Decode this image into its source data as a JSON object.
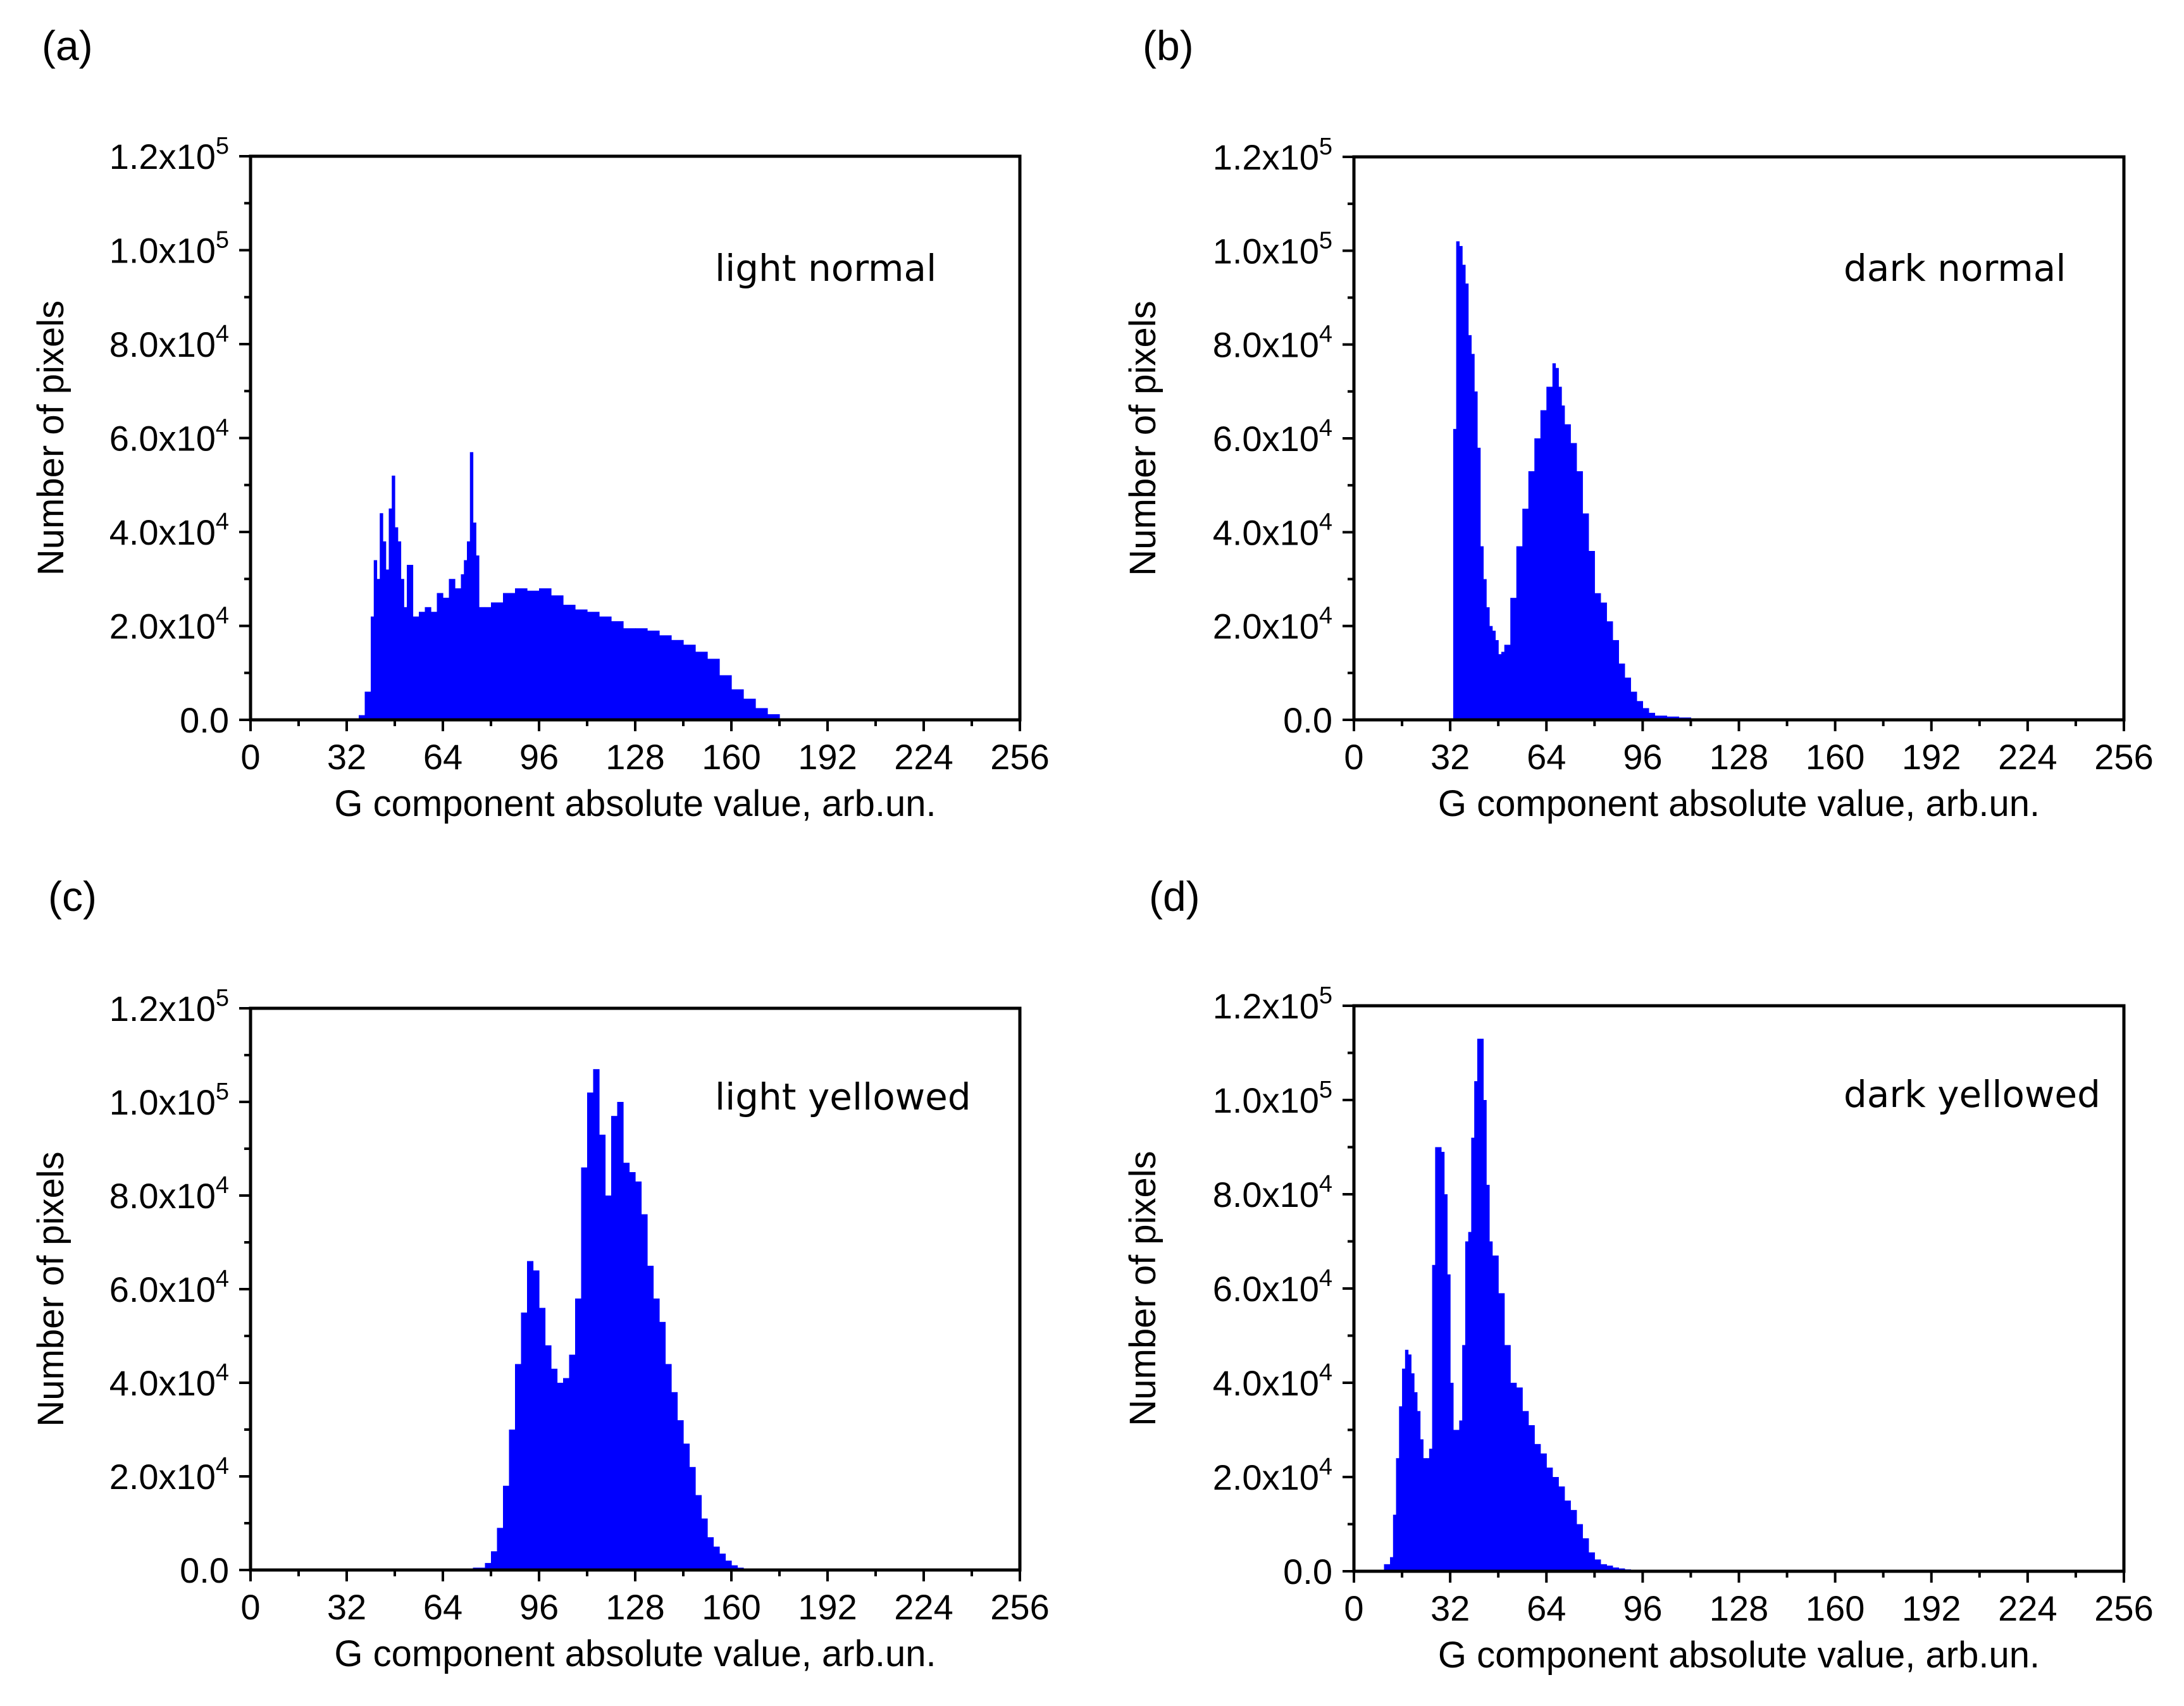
{
  "chart_data": [
    {
      "type": "bar",
      "panel": "(a)",
      "annotation": "light normal",
      "xlabel": "G component absolute value, arb.un.",
      "ylabel": "Number of pixels",
      "xlim": [
        0,
        256
      ],
      "ylim": [
        0,
        120000
      ],
      "xticks": [
        "0",
        "32",
        "64",
        "96",
        "128",
        "160",
        "192",
        "224",
        "256"
      ],
      "yticks": [
        {
          "m": "0.0",
          "e": ""
        },
        {
          "m": "2.0x10",
          "e": "4"
        },
        {
          "m": "4.0x10",
          "e": "4"
        },
        {
          "m": "6.0x10",
          "e": "4"
        },
        {
          "m": "8.0x10",
          "e": "4"
        },
        {
          "m": "1.0x10",
          "e": "5"
        },
        {
          "m": "1.2x10",
          "e": "5"
        }
      ],
      "color": "#0000ff",
      "x": [
        32,
        36,
        38,
        40,
        41,
        42,
        43,
        44,
        45,
        46,
        47,
        48,
        49,
        50,
        51,
        52,
        54,
        56,
        58,
        60,
        62,
        64,
        66,
        68,
        70,
        71,
        72,
        73,
        74,
        75,
        76,
        78,
        80,
        84,
        88,
        92,
        96,
        100,
        104,
        108,
        112,
        116,
        120,
        124,
        128,
        132,
        136,
        140,
        144,
        148,
        152,
        156,
        160,
        164,
        168,
        172,
        176,
        180,
        182
      ],
      "values": [
        0,
        1000,
        6000,
        22000,
        34000,
        30000,
        44000,
        38000,
        32000,
        45000,
        52000,
        41000,
        38000,
        30000,
        24000,
        33000,
        22000,
        23000,
        24000,
        23000,
        27000,
        26000,
        30000,
        28000,
        31000,
        34000,
        38000,
        57000,
        42000,
        35000,
        24000,
        24000,
        25000,
        27000,
        28000,
        27500,
        28000,
        26500,
        24500,
        23500,
        23000,
        22000,
        21000,
        19500,
        19500,
        19000,
        18000,
        17000,
        16000,
        14500,
        13000,
        9500,
        6500,
        4500,
        2500,
        1200,
        300,
        0,
        0
      ]
    },
    {
      "type": "bar",
      "panel": "(b)",
      "annotation": "dark normal",
      "xlabel": "G component absolute value, arb.un.",
      "ylabel": "Number of pixels",
      "xlim": [
        0,
        256
      ],
      "ylim": [
        0,
        120000
      ],
      "xticks": [
        "0",
        "32",
        "64",
        "96",
        "128",
        "160",
        "192",
        "224",
        "256"
      ],
      "yticks": [
        {
          "m": "0.0",
          "e": ""
        },
        {
          "m": "2.0x10",
          "e": "4"
        },
        {
          "m": "4.0x10",
          "e": "4"
        },
        {
          "m": "6.0x10",
          "e": "4"
        },
        {
          "m": "8.0x10",
          "e": "4"
        },
        {
          "m": "1.0x10",
          "e": "5"
        },
        {
          "m": "1.2x10",
          "e": "5"
        }
      ],
      "color": "#0000ff",
      "x": [
        33,
        34,
        35,
        36,
        37,
        38,
        39,
        40,
        41,
        42,
        43,
        44,
        45,
        46,
        47,
        48,
        49,
        50,
        52,
        54,
        56,
        58,
        60,
        62,
        64,
        66,
        67,
        68,
        69,
        70,
        72,
        74,
        76,
        78,
        80,
        82,
        84,
        86,
        88,
        90,
        92,
        94,
        96,
        98,
        100,
        104,
        108,
        112,
        116,
        120,
        124
      ],
      "values": [
        62000,
        102000,
        101000,
        97000,
        93000,
        82000,
        78000,
        70000,
        58000,
        37000,
        30000,
        24000,
        20000,
        19000,
        17000,
        14000,
        14500,
        16000,
        26000,
        37000,
        45000,
        53000,
        60000,
        66000,
        71000,
        76000,
        75000,
        71000,
        67000,
        63000,
        59000,
        53000,
        44000,
        36000,
        27000,
        25000,
        21000,
        17000,
        12000,
        9000,
        6000,
        4000,
        2500,
        1500,
        900,
        700,
        500,
        300,
        200,
        100,
        0
      ]
    },
    {
      "type": "bar",
      "panel": "(c)",
      "annotation": "light yellowed",
      "xlabel": "G component absolute value, arb.un.",
      "ylabel": "Number of pixels",
      "xlim": [
        0,
        256
      ],
      "ylim": [
        0,
        120000
      ],
      "xticks": [
        "0",
        "32",
        "64",
        "96",
        "128",
        "160",
        "192",
        "224",
        "256"
      ],
      "yticks": [
        {
          "m": "0.0",
          "e": ""
        },
        {
          "m": "2.0x10",
          "e": "4"
        },
        {
          "m": "4.0x10",
          "e": "4"
        },
        {
          "m": "6.0x10",
          "e": "4"
        },
        {
          "m": "8.0x10",
          "e": "4"
        },
        {
          "m": "1.0x10",
          "e": "5"
        },
        {
          "m": "1.2x10",
          "e": "5"
        }
      ],
      "color": "#0000ff",
      "x": [
        66,
        70,
        74,
        78,
        80,
        82,
        84,
        86,
        88,
        90,
        92,
        94,
        96,
        98,
        100,
        102,
        104,
        106,
        108,
        110,
        112,
        114,
        116,
        118,
        120,
        122,
        124,
        126,
        128,
        130,
        132,
        134,
        136,
        138,
        140,
        142,
        144,
        146,
        148,
        150,
        152,
        154,
        156,
        158,
        160,
        162,
        164,
        166,
        168
      ],
      "values": [
        100,
        200,
        500,
        1500,
        4000,
        9000,
        18000,
        30000,
        44000,
        55000,
        66000,
        64000,
        56000,
        48000,
        43000,
        40000,
        41000,
        46000,
        58000,
        86000,
        102000,
        107000,
        93000,
        80000,
        97000,
        100000,
        87000,
        85000,
        83000,
        76000,
        65000,
        58000,
        53000,
        44000,
        38000,
        32000,
        27000,
        22000,
        16000,
        11000,
        7000,
        5000,
        3500,
        2000,
        1000,
        500,
        200,
        100,
        0
      ]
    },
    {
      "type": "bar",
      "panel": "(d)",
      "annotation": "dark yellowed",
      "xlabel": "G component absolute value, arb.un.",
      "ylabel": "Number of pixels",
      "xlim": [
        0,
        256
      ],
      "ylim": [
        0,
        120000
      ],
      "xticks": [
        "0",
        "32",
        "64",
        "96",
        "128",
        "160",
        "192",
        "224",
        "256"
      ],
      "yticks": [
        {
          "m": "0.0",
          "e": ""
        },
        {
          "m": "2.0x10",
          "e": "4"
        },
        {
          "m": "4.0x10",
          "e": "4"
        },
        {
          "m": "6.0x10",
          "e": "4"
        },
        {
          "m": "8.0x10",
          "e": "4"
        },
        {
          "m": "1.0x10",
          "e": "5"
        },
        {
          "m": "1.2x10",
          "e": "5"
        }
      ],
      "color": "#0000ff",
      "x": [
        10,
        12,
        13,
        14,
        15,
        16,
        17,
        18,
        19,
        20,
        21,
        22,
        23,
        24,
        25,
        26,
        27,
        28,
        29,
        30,
        31,
        32,
        33,
        34,
        35,
        36,
        37,
        38,
        39,
        40,
        41,
        42,
        43,
        44,
        45,
        46,
        47,
        48,
        50,
        52,
        54,
        56,
        58,
        60,
        62,
        64,
        66,
        68,
        70,
        72,
        74,
        76,
        78,
        80,
        82,
        84,
        86,
        88,
        90,
        92,
        94,
        96
      ],
      "values": [
        1500,
        3000,
        12000,
        24000,
        35000,
        43000,
        47000,
        46000,
        42000,
        38000,
        34000,
        28000,
        24000,
        24000,
        26000,
        65000,
        90000,
        90000,
        89000,
        80000,
        63000,
        40000,
        30000,
        30000,
        32000,
        48000,
        70000,
        72000,
        92000,
        104000,
        113000,
        113000,
        100000,
        82000,
        70000,
        67000,
        67000,
        59000,
        48000,
        40000,
        39000,
        34000,
        31000,
        27000,
        25000,
        22000,
        20000,
        18000,
        15000,
        13000,
        10000,
        7000,
        4000,
        2500,
        1500,
        1200,
        800,
        600,
        400,
        200,
        100,
        0
      ]
    }
  ]
}
